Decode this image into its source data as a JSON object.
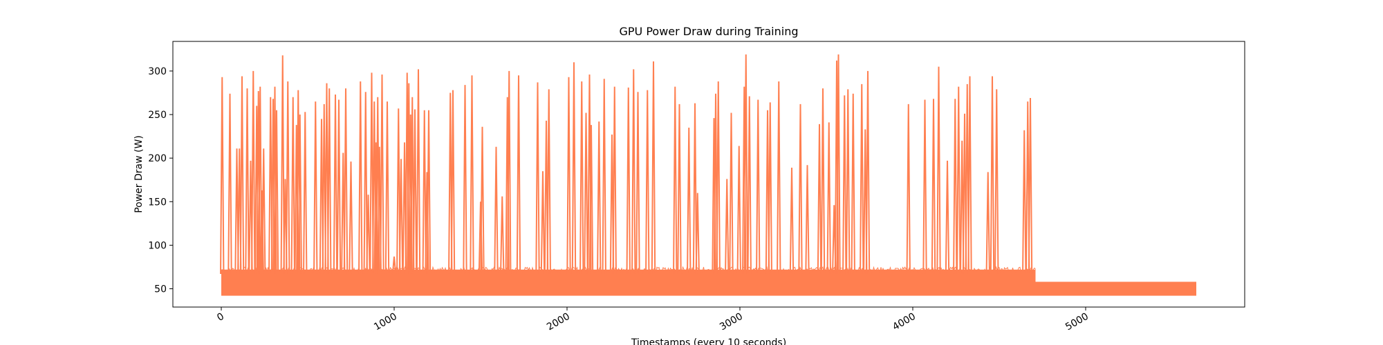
{
  "chart_data": {
    "type": "line",
    "title": "GPU Power Draw during Training",
    "xlabel": "Timestamps (every 10 seconds)",
    "ylabel": "Power Draw (W)",
    "xlim": [
      -280,
      5920
    ],
    "ylim": [
      29,
      334
    ],
    "x_ticks": [
      0,
      1000,
      2000,
      3000,
      4000,
      5000
    ],
    "x_tick_labels": [
      "0",
      "1000",
      "2000",
      "3000",
      "4000",
      "5000"
    ],
    "y_ticks": [
      50,
      100,
      150,
      200,
      250,
      300
    ],
    "y_tick_labels": [
      "50",
      "100",
      "150",
      "200",
      "250",
      "300"
    ],
    "x_tick_rotation": 30,
    "grid": false,
    "legend": "none",
    "color": "#ff7f50",
    "series": [
      {
        "name": "",
        "phases": [
          {
            "x_start": 0,
            "x_end": 4710,
            "baseline_low": 42,
            "baseline_high": 72
          },
          {
            "x_start": 4710,
            "x_end": 5640,
            "baseline_low": 42,
            "baseline_high": 58
          }
        ],
        "spikes": [
          {
            "x": 5,
            "y": 293
          },
          {
            "x": 50,
            "y": 274
          },
          {
            "x": 90,
            "y": 211
          },
          {
            "x": 105,
            "y": 211
          },
          {
            "x": 120,
            "y": 294
          },
          {
            "x": 150,
            "y": 280
          },
          {
            "x": 170,
            "y": 197
          },
          {
            "x": 185,
            "y": 300
          },
          {
            "x": 205,
            "y": 260
          },
          {
            "x": 215,
            "y": 277
          },
          {
            "x": 225,
            "y": 282
          },
          {
            "x": 235,
            "y": 163
          },
          {
            "x": 245,
            "y": 211
          },
          {
            "x": 285,
            "y": 270
          },
          {
            "x": 300,
            "y": 268
          },
          {
            "x": 310,
            "y": 282
          },
          {
            "x": 320,
            "y": 255
          },
          {
            "x": 355,
            "y": 318
          },
          {
            "x": 370,
            "y": 176
          },
          {
            "x": 385,
            "y": 288
          },
          {
            "x": 415,
            "y": 270
          },
          {
            "x": 435,
            "y": 238
          },
          {
            "x": 445,
            "y": 278
          },
          {
            "x": 455,
            "y": 250
          },
          {
            "x": 485,
            "y": 253
          },
          {
            "x": 545,
            "y": 265
          },
          {
            "x": 580,
            "y": 245
          },
          {
            "x": 595,
            "y": 262
          },
          {
            "x": 610,
            "y": 286
          },
          {
            "x": 625,
            "y": 280
          },
          {
            "x": 660,
            "y": 273
          },
          {
            "x": 680,
            "y": 267
          },
          {
            "x": 705,
            "y": 206
          },
          {
            "x": 720,
            "y": 280
          },
          {
            "x": 750,
            "y": 196
          },
          {
            "x": 805,
            "y": 288
          },
          {
            "x": 835,
            "y": 276
          },
          {
            "x": 850,
            "y": 158
          },
          {
            "x": 870,
            "y": 298
          },
          {
            "x": 885,
            "y": 265
          },
          {
            "x": 895,
            "y": 218
          },
          {
            "x": 905,
            "y": 270
          },
          {
            "x": 915,
            "y": 213
          },
          {
            "x": 930,
            "y": 296
          },
          {
            "x": 960,
            "y": 265
          },
          {
            "x": 1000,
            "y": 87
          },
          {
            "x": 1025,
            "y": 257
          },
          {
            "x": 1040,
            "y": 199
          },
          {
            "x": 1060,
            "y": 218
          },
          {
            "x": 1075,
            "y": 298
          },
          {
            "x": 1085,
            "y": 286
          },
          {
            "x": 1095,
            "y": 250
          },
          {
            "x": 1105,
            "y": 270
          },
          {
            "x": 1120,
            "y": 256
          },
          {
            "x": 1140,
            "y": 302
          },
          {
            "x": 1175,
            "y": 255
          },
          {
            "x": 1190,
            "y": 184
          },
          {
            "x": 1200,
            "y": 255
          },
          {
            "x": 1325,
            "y": 275
          },
          {
            "x": 1340,
            "y": 278
          },
          {
            "x": 1410,
            "y": 284
          },
          {
            "x": 1450,
            "y": 295
          },
          {
            "x": 1500,
            "y": 150
          },
          {
            "x": 1510,
            "y": 236
          },
          {
            "x": 1590,
            "y": 213
          },
          {
            "x": 1625,
            "y": 156
          },
          {
            "x": 1655,
            "y": 270
          },
          {
            "x": 1665,
            "y": 300
          },
          {
            "x": 1720,
            "y": 295
          },
          {
            "x": 1830,
            "y": 287
          },
          {
            "x": 1860,
            "y": 185
          },
          {
            "x": 1880,
            "y": 243
          },
          {
            "x": 1895,
            "y": 279
          },
          {
            "x": 2010,
            "y": 293
          },
          {
            "x": 2040,
            "y": 310
          },
          {
            "x": 2085,
            "y": 288
          },
          {
            "x": 2110,
            "y": 252
          },
          {
            "x": 2130,
            "y": 296
          },
          {
            "x": 2140,
            "y": 238
          },
          {
            "x": 2185,
            "y": 242
          },
          {
            "x": 2215,
            "y": 291
          },
          {
            "x": 2260,
            "y": 227
          },
          {
            "x": 2275,
            "y": 282
          },
          {
            "x": 2355,
            "y": 281
          },
          {
            "x": 2385,
            "y": 302
          },
          {
            "x": 2410,
            "y": 276
          },
          {
            "x": 2465,
            "y": 278
          },
          {
            "x": 2500,
            "y": 311
          },
          {
            "x": 2625,
            "y": 282
          },
          {
            "x": 2650,
            "y": 262
          },
          {
            "x": 2705,
            "y": 235
          },
          {
            "x": 2740,
            "y": 263
          },
          {
            "x": 2755,
            "y": 160
          },
          {
            "x": 2850,
            "y": 246
          },
          {
            "x": 2860,
            "y": 274
          },
          {
            "x": 2875,
            "y": 288
          },
          {
            "x": 2925,
            "y": 176
          },
          {
            "x": 2950,
            "y": 252
          },
          {
            "x": 2995,
            "y": 214
          },
          {
            "x": 3025,
            "y": 282
          },
          {
            "x": 3035,
            "y": 319
          },
          {
            "x": 3055,
            "y": 271
          },
          {
            "x": 3105,
            "y": 267
          },
          {
            "x": 3160,
            "y": 255
          },
          {
            "x": 3175,
            "y": 264
          },
          {
            "x": 3225,
            "y": 288
          },
          {
            "x": 3300,
            "y": 189
          },
          {
            "x": 3350,
            "y": 262
          },
          {
            "x": 3390,
            "y": 192
          },
          {
            "x": 3460,
            "y": 239
          },
          {
            "x": 3480,
            "y": 280
          },
          {
            "x": 3515,
            "y": 241
          },
          {
            "x": 3545,
            "y": 146
          },
          {
            "x": 3560,
            "y": 312
          },
          {
            "x": 3570,
            "y": 319
          },
          {
            "x": 3605,
            "y": 272
          },
          {
            "x": 3625,
            "y": 279
          },
          {
            "x": 3655,
            "y": 274
          },
          {
            "x": 3705,
            "y": 285
          },
          {
            "x": 3725,
            "y": 233
          },
          {
            "x": 3740,
            "y": 300
          },
          {
            "x": 3975,
            "y": 262
          },
          {
            "x": 4070,
            "y": 267
          },
          {
            "x": 4120,
            "y": 268
          },
          {
            "x": 4150,
            "y": 305
          },
          {
            "x": 4200,
            "y": 197
          },
          {
            "x": 4245,
            "y": 268
          },
          {
            "x": 4265,
            "y": 282
          },
          {
            "x": 4285,
            "y": 220
          },
          {
            "x": 4300,
            "y": 251
          },
          {
            "x": 4315,
            "y": 285
          },
          {
            "x": 4330,
            "y": 294
          },
          {
            "x": 4435,
            "y": 184
          },
          {
            "x": 4460,
            "y": 294
          },
          {
            "x": 4485,
            "y": 279
          },
          {
            "x": 4645,
            "y": 232
          },
          {
            "x": 4665,
            "y": 265
          },
          {
            "x": 4680,
            "y": 269
          }
        ]
      }
    ]
  }
}
